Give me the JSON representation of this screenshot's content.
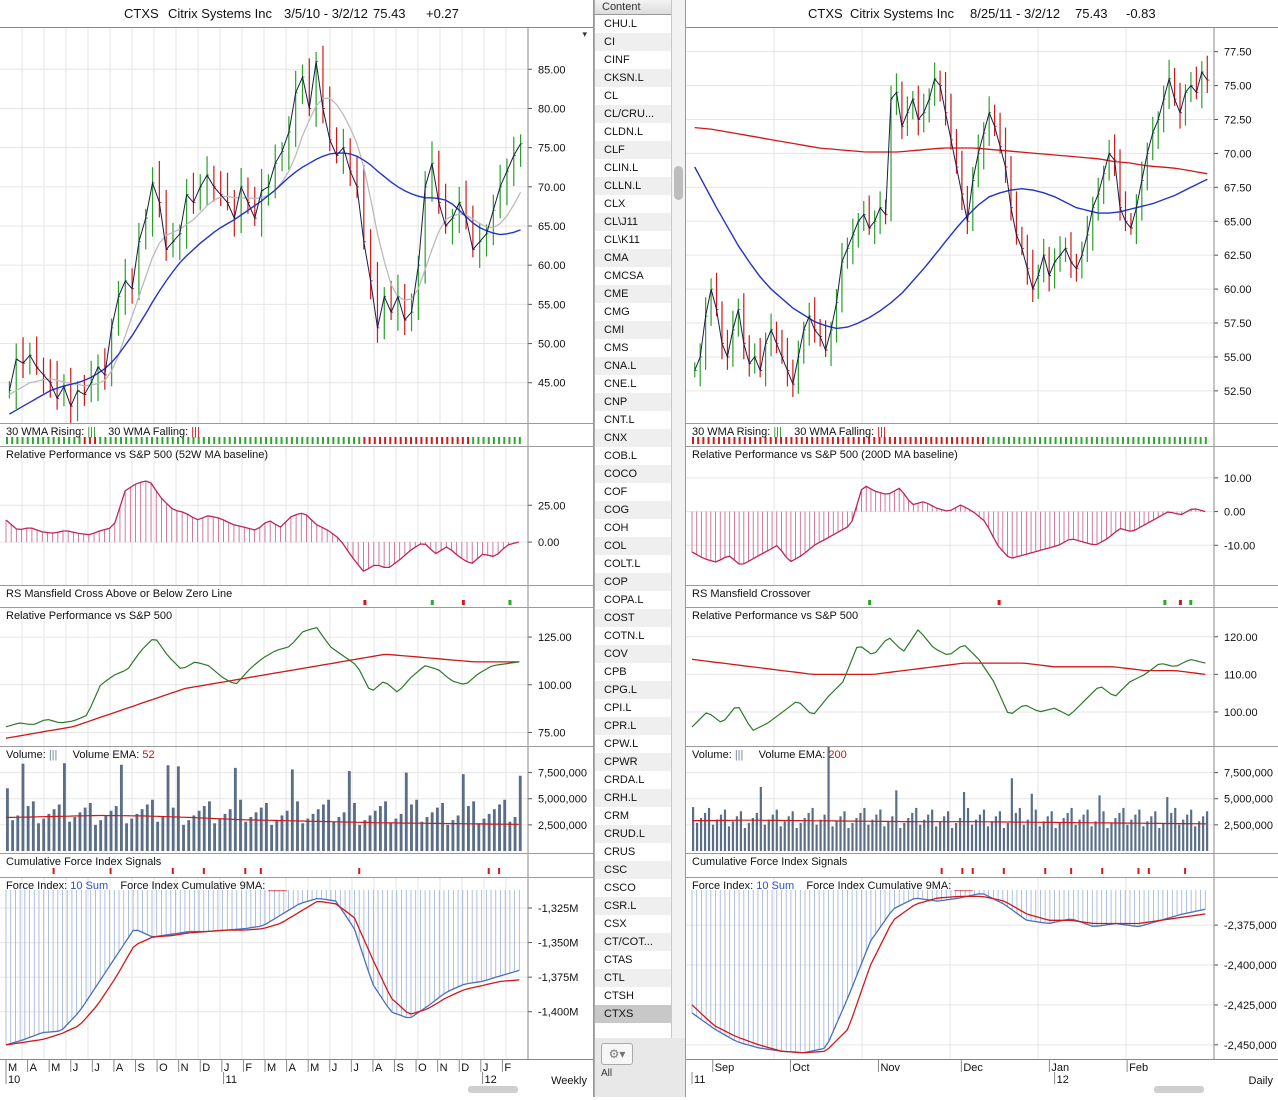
{
  "left": {
    "header": {
      "symbol": "CTXS",
      "name": "Citrix Systems Inc",
      "range": "3/5/10 - 3/2/12",
      "price": "75.43",
      "change": "+0.27"
    },
    "price_axis": [
      "85.00",
      "80.00",
      "75.00",
      "70.00",
      "65.00",
      "60.00",
      "55.00",
      "50.00",
      "45.00"
    ],
    "price_values": [
      85,
      80,
      75,
      70,
      65,
      60,
      55,
      50,
      45
    ],
    "price_min": 40.5,
    "price_max": 89.5,
    "wma_label_rising": "30 WMA Rising:",
    "wma_label_falling": "30 WMA Falling:",
    "rp1_label": "Relative Performance vs S&P 500 (52W MA baseline)",
    "rp1_axis": [
      "25.00",
      "0.00"
    ],
    "rp1_values": [
      25,
      0
    ],
    "rs_label": "RS Mansfield Cross Above or Below Zero Line",
    "rp2_label": "Relative Performance vs S&P 500",
    "rp2_axis": [
      "125.00",
      "100.00",
      "75.00"
    ],
    "rp2_values": [
      125,
      100,
      75
    ],
    "vol_label": "Volume:",
    "vol_ema_label": "Volume EMA:",
    "vol_ema_value": "52",
    "vol_axis": [
      "7,500,000",
      "5,000,000",
      "2,500,000"
    ],
    "vol_values": [
      7500000,
      5000000,
      2500000
    ],
    "cfi_label": "Cumulative Force Index Signals",
    "fi_label": "Force Index:",
    "fi_sum": "10 Sum",
    "fi_cum_label": "Force Index Cumulative 9MA:",
    "fi_axis": [
      "-1,325M",
      "-1,350M",
      "-1,375M",
      "-1,400M"
    ],
    "fi_values": [
      -1325,
      -1350,
      -1375,
      -1400
    ],
    "x_months": [
      "M",
      "A",
      "M",
      "J",
      "J",
      "A",
      "S",
      "O",
      "N",
      "D",
      "J",
      "F",
      "M",
      "A",
      "M",
      "J",
      "J",
      "A",
      "S",
      "O",
      "N",
      "D",
      "J",
      "F"
    ],
    "x_years": [
      "10",
      "11",
      "12"
    ],
    "timeframe": "Weekly"
  },
  "right": {
    "header": {
      "symbol": "CTXS",
      "name": "Citrix Systems Inc",
      "range": "8/25/11 - 3/2/12",
      "price": "75.43",
      "change": "-0.83"
    },
    "price_axis": [
      "77.50",
      "75.00",
      "72.50",
      "70.00",
      "67.50",
      "65.00",
      "62.50",
      "60.00",
      "57.50",
      "55.00",
      "52.50"
    ],
    "price_values": [
      77.5,
      75,
      72.5,
      70,
      67.5,
      65,
      62.5,
      60,
      57.5,
      55,
      52.5
    ],
    "price_min": 50.5,
    "price_max": 78.8,
    "wma_label_rising": "30 WMA Rising:",
    "wma_label_falling": "30 WMA Falling:",
    "rp1_label": "Relative Performance vs S&P 500 (200D MA baseline)",
    "rp1_axis": [
      "10.00",
      "0.00",
      "-10.00"
    ],
    "rp1_values": [
      10,
      0,
      -10
    ],
    "rs_label": "RS Mansfield Crossover",
    "rp2_label": "Relative Performance vs S&P 500",
    "rp2_axis": [
      "120.00",
      "110.00",
      "100.00"
    ],
    "rp2_values": [
      120,
      110,
      100
    ],
    "vol_label": "Volume:",
    "vol_ema_label": "Volume EMA:",
    "vol_ema_value": "200",
    "vol_axis": [
      "7,500,000",
      "5,000,000",
      "2,500,000"
    ],
    "vol_values": [
      7500000,
      5000000,
      2500000
    ],
    "cfi_label": "Cumulative Force Index Signals",
    "fi_label": "Force Index:",
    "fi_sum": "10 Sum",
    "fi_cum_label": "Force Index Cumulative 9MA:",
    "fi_axis": [
      "-2,375,000",
      "-2,400,000",
      "-2,425,000",
      "-2,450,000"
    ],
    "fi_values": [
      -2375000,
      -2400000,
      -2425000,
      -2450000
    ],
    "x_months": [
      "Sep",
      "Oct",
      "Nov",
      "Dec",
      "Jan",
      "Feb"
    ],
    "x_years": [
      "11",
      "12"
    ],
    "timeframe": "Daily"
  },
  "watchlist": {
    "header": "Content",
    "items": [
      "CHU.L",
      "CI",
      "CINF",
      "CKSN.L",
      "CL",
      "CL/CRU...",
      "CLDN.L",
      "CLF",
      "CLIN.L",
      "CLLN.L",
      "CLX",
      "CL\\J11",
      "CL\\K11",
      "CMA",
      "CMCSA",
      "CME",
      "CMG",
      "CMI",
      "CMS",
      "CNA.L",
      "CNE.L",
      "CNP",
      "CNT.L",
      "CNX",
      "COB.L",
      "COCO",
      "COF",
      "COG",
      "COH",
      "COL",
      "COLT.L",
      "COP",
      "COPA.L",
      "COST",
      "COTN.L",
      "COV",
      "CPB",
      "CPG.L",
      "CPI.L",
      "CPR.L",
      "CPW.L",
      "CPWR",
      "CRDA.L",
      "CRH.L",
      "CRM",
      "CRUD.L",
      "CRUS",
      "CSC",
      "CSCO",
      "CSR.L",
      "CSX",
      "CT/COT...",
      "CTAS",
      "CTL",
      "CTSH",
      "CTXS"
    ],
    "selected": "CTXS",
    "footer": "All"
  },
  "colors": {
    "up": "#2aa02a",
    "down": "#d01818",
    "price": "#1a1a4a",
    "ma_blue": "#2233cc",
    "ma_gray": "#bbbbbb",
    "ma_red": "#d01818",
    "rp_pink": "#c0245a",
    "rp_green": "#2a7a2a",
    "vol_bar": "#5a6e88",
    "fi_blue": "#4a6ec0"
  },
  "chart_data": [
    {
      "type": "line",
      "title": "CTXS Citrix Systems Inc 3/5/10 - 3/2/12 (Weekly)",
      "ylim": [
        40.5,
        89.5
      ],
      "series": []
    },
    {
      "type": "line",
      "title": "CTXS Citrix Systems Inc 8/25/11 - 3/2/12 (Daily)",
      "ylim": [
        50.5,
        78.8
      ],
      "series": []
    }
  ],
  "chart_series": {
    "left_close": [
      44.0,
      48.0,
      47.5,
      48.5,
      47.0,
      46.0,
      45.0,
      43.0,
      44.5,
      42.0,
      44.0,
      43.5,
      45.0,
      47.0,
      46.0,
      52.0,
      56.0,
      58.0,
      57.0,
      63.0,
      66.0,
      70.5,
      68.0,
      62.0,
      63.0,
      64.0,
      69.0,
      68.0,
      70.0,
      71.5,
      70.0,
      69.0,
      68.0,
      66.0,
      70.0,
      68.0,
      66.0,
      69.5,
      70.0,
      73.0,
      74.5,
      77.0,
      82.0,
      84.0,
      80.0,
      86.0,
      80.0,
      76.0,
      74.0,
      75.0,
      72.0,
      70.0,
      63.0,
      58.0,
      52.0,
      56.0,
      54.0,
      56.0,
      53.0,
      54.0,
      60.0,
      70.0,
      73.0,
      68.0,
      65.0,
      66.0,
      68.0,
      66.0,
      62.0,
      63.0,
      64.0,
      67.0,
      70.0,
      72.0,
      74.0,
      75.5
    ],
    "left_sma_blue": [
      41,
      41.5,
      42,
      42.5,
      43,
      43.5,
      44,
      44.3,
      44.6,
      44.8,
      45,
      45.3,
      45.7,
      46.2,
      46.8,
      47.6,
      48.6,
      49.8,
      51,
      52.4,
      53.8,
      55.3,
      56.7,
      58,
      59.2,
      60.3,
      61.2,
      62,
      62.8,
      63.5,
      64.2,
      64.8,
      65.3,
      65.8,
      66.4,
      67,
      67.6,
      68.2,
      68.9,
      69.6,
      70.4,
      71.2,
      71.9,
      72.5,
      73,
      73.5,
      73.9,
      74.2,
      74.3,
      74.3,
      74.2,
      73.9,
      73.4,
      72.8,
      72,
      71.3,
      70.6,
      70,
      69.5,
      69.1,
      68.8,
      68.6,
      68.6,
      68.5,
      68.3,
      67.8,
      67.0,
      66.2,
      65.4,
      64.8,
      64.4,
      64.1,
      63.9,
      64.0,
      64.2,
      64.5
    ],
    "left_wma_gray": [
      43.5,
      44,
      44.5,
      45,
      45.2,
      45.4,
      45.5,
      45.3,
      45.1,
      44.9,
      44.8,
      44.6,
      44.7,
      44.9,
      45.3,
      46.5,
      48.5,
      51,
      53.5,
      56,
      58.5,
      61,
      62.8,
      63.8,
      64.2,
      64.6,
      65.2,
      65.8,
      66.7,
      67.6,
      68.3,
      68.7,
      68.8,
      68.6,
      68.6,
      68.6,
      68.5,
      68.6,
      68.9,
      69.5,
      70.6,
      72,
      74,
      76.5,
      78.5,
      80.3,
      81.3,
      81.3,
      80.5,
      79.2,
      77.5,
      75.5,
      72.5,
      68.5,
      64,
      60.5,
      57.5,
      56,
      55.5,
      55.7,
      57,
      59.5,
      62,
      64.3,
      65.8,
      66.3,
      66.5,
      66.4,
      65.9,
      65.3,
      64.9,
      64.8,
      65.3,
      66.3,
      67.7,
      69.3
    ],
    "right_close": [
      54.0,
      55.0,
      58.0,
      60.0,
      58.5,
      56.0,
      55.0,
      57.0,
      58.5,
      56.0,
      54.5,
      55.0,
      54.0,
      56.0,
      57.0,
      56.0,
      55.0,
      54.0,
      53.0,
      55.0,
      57.0,
      58.0,
      57.0,
      56.5,
      55.5,
      57.0,
      59.0,
      62.0,
      63.0,
      64.0,
      65.0,
      65.5,
      64.5,
      65.0,
      66.0,
      65.5,
      74.0,
      74.5,
      72.0,
      73.0,
      74.0,
      72.5,
      73.0,
      74.0,
      75.5,
      75.0,
      73.0,
      71.0,
      69.0,
      67.0,
      65.0,
      68.0,
      70.0,
      71.5,
      73.0,
      72.0,
      70.5,
      69.0,
      66.0,
      64.0,
      63.0,
      61.5,
      60.0,
      61.0,
      62.5,
      61.0,
      62.0,
      62.5,
      63.0,
      62.0,
      61.5,
      62.5,
      64.0,
      66.0,
      67.0,
      68.5,
      70.0,
      69.5,
      66.0,
      65.0,
      64.5,
      66.0,
      68.0,
      70.0,
      71.5,
      72.5,
      74.0,
      75.5,
      74.0,
      73.0,
      74.5,
      75.0,
      74.5,
      76.0,
      75.4
    ],
    "right_sma_blue": [
      69.0,
      67.5,
      66.0,
      64.6,
      63.2,
      62.0,
      60.9,
      60.0,
      59.3,
      58.6,
      58.1,
      57.6,
      57.3,
      57.1,
      57.2,
      57.5,
      57.9,
      58.4,
      59.0,
      59.7,
      60.6,
      61.5,
      62.5,
      63.5,
      64.5,
      65.4,
      66.2,
      66.8,
      67.1,
      67.3,
      67.4,
      67.3,
      67.1,
      66.8,
      66.4,
      66.0,
      65.8,
      65.6,
      65.6,
      65.7,
      65.9,
      66.1,
      66.3,
      66.6,
      66.9,
      67.3,
      67.7,
      68.1
    ],
    "right_sma_red": [
      71.9,
      71.8,
      71.6,
      71.4,
      71.2,
      71.0,
      70.8,
      70.6,
      70.4,
      70.3,
      70.2,
      70.1,
      70.1,
      70.1,
      70.2,
      70.3,
      70.4,
      70.4,
      70.4,
      70.3,
      70.2,
      70.1,
      70.0,
      69.9,
      69.8,
      69.7,
      69.6,
      69.4,
      69.3,
      69.1,
      69.0,
      68.9,
      68.7,
      68.5
    ]
  }
}
